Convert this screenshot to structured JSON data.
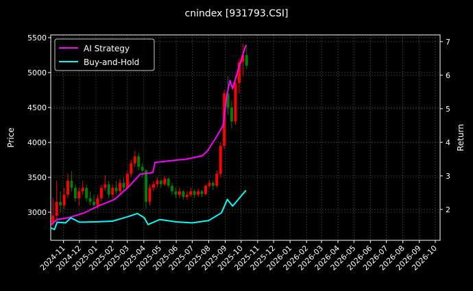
{
  "chart_data": {
    "type": "line",
    "title": "cnindex [931793.CSI]",
    "ylabel": "Price",
    "ylabel_right": "Return",
    "xlim": [
      "2024-10-08",
      "2026-10-10"
    ],
    "ylim": [
      2598,
      5539
    ],
    "ylim_right": [
      1.08,
      7.2
    ],
    "grid": true,
    "legend_placement": "top-left",
    "x_ticks": [
      "2024-11",
      "2024-12",
      "2025-01",
      "2025-02",
      "2025-03",
      "2025-04",
      "2025-05",
      "2025-06",
      "2025-07",
      "2025-08",
      "2025-09",
      "2025-10",
      "2025-11",
      "2025-12",
      "2026-01",
      "2026-02",
      "2026-03",
      "2026-04",
      "2026-05",
      "2026-06",
      "2026-07",
      "2026-08",
      "2026-09",
      "2026-10"
    ],
    "y_ticks": [
      3000,
      3500,
      4000,
      4500,
      5000,
      5500
    ],
    "y_ticks_right": [
      2,
      3,
      4,
      5,
      6,
      7
    ],
    "colors": {
      "up": "#ff0000",
      "down": "#008000",
      "ai": "#ff00ff",
      "bh": "#00ffff",
      "grid": "#555555"
    },
    "candles": [
      [
        "2024-10-09",
        2850,
        3200,
        2800,
        2950
      ],
      [
        "2024-10-16",
        2950,
        3450,
        2900,
        3150
      ],
      [
        "2024-10-23",
        3150,
        3300,
        3000,
        3100
      ],
      [
        "2024-10-30",
        3100,
        3350,
        3050,
        3250
      ],
      [
        "2024-11-06",
        3250,
        3550,
        3200,
        3450
      ],
      [
        "2024-11-13",
        3450,
        3590,
        3300,
        3350
      ],
      [
        "2024-11-20",
        3350,
        3400,
        3150,
        3200
      ],
      [
        "2024-11-27",
        3200,
        3350,
        3100,
        3300
      ],
      [
        "2024-12-04",
        3300,
        3450,
        3250,
        3350
      ],
      [
        "2024-12-11",
        3350,
        3400,
        3150,
        3200
      ],
      [
        "2024-12-18",
        3200,
        3300,
        3100,
        3150
      ],
      [
        "2024-12-25",
        3150,
        3250,
        3050,
        3100
      ],
      [
        "2025-01-01",
        3100,
        3250,
        3050,
        3200
      ],
      [
        "2025-01-08",
        3200,
        3400,
        3150,
        3350
      ],
      [
        "2025-01-15",
        3350,
        3530,
        3300,
        3400
      ],
      [
        "2025-01-22",
        3400,
        3450,
        3200,
        3250
      ],
      [
        "2025-01-29",
        3250,
        3400,
        3200,
        3350
      ],
      [
        "2025-02-05",
        3350,
        3450,
        3250,
        3300
      ],
      [
        "2025-02-12",
        3300,
        3480,
        3250,
        3420
      ],
      [
        "2025-02-19",
        3420,
        3500,
        3300,
        3350
      ],
      [
        "2025-02-26",
        3350,
        3600,
        3320,
        3550
      ],
      [
        "2025-03-05",
        3550,
        3750,
        3500,
        3700
      ],
      [
        "2025-03-12",
        3700,
        3880,
        3650,
        3800
      ],
      [
        "2025-03-19",
        3800,
        3850,
        3600,
        3650
      ],
      [
        "2025-03-26",
        3650,
        3700,
        3500,
        3600
      ],
      [
        "2025-04-02",
        3600,
        3620,
        3050,
        3150
      ],
      [
        "2025-04-09",
        3150,
        3400,
        3100,
        3350
      ],
      [
        "2025-04-16",
        3350,
        3450,
        3300,
        3400
      ],
      [
        "2025-04-23",
        3400,
        3500,
        3350,
        3450
      ],
      [
        "2025-04-30",
        3450,
        3480,
        3350,
        3400
      ],
      [
        "2025-05-07",
        3400,
        3520,
        3380,
        3480
      ],
      [
        "2025-05-14",
        3480,
        3500,
        3350,
        3380
      ],
      [
        "2025-05-21",
        3380,
        3420,
        3250,
        3300
      ],
      [
        "2025-05-28",
        3300,
        3350,
        3200,
        3250
      ],
      [
        "2025-06-04",
        3250,
        3350,
        3200,
        3300
      ],
      [
        "2025-06-11",
        3300,
        3320,
        3180,
        3220
      ],
      [
        "2025-06-18",
        3220,
        3300,
        3180,
        3250
      ],
      [
        "2025-06-25",
        3250,
        3350,
        3220,
        3300
      ],
      [
        "2025-07-02",
        3300,
        3330,
        3200,
        3250
      ],
      [
        "2025-07-09",
        3250,
        3340,
        3220,
        3300
      ],
      [
        "2025-07-16",
        3300,
        3320,
        3220,
        3260
      ],
      [
        "2025-07-23",
        3260,
        3400,
        3240,
        3380
      ],
      [
        "2025-07-30",
        3380,
        3460,
        3350,
        3420
      ],
      [
        "2025-08-06",
        3420,
        3450,
        3320,
        3380
      ],
      [
        "2025-08-13",
        3380,
        3600,
        3350,
        3550
      ],
      [
        "2025-08-20",
        3550,
        4000,
        3500,
        3950
      ],
      [
        "2025-08-27",
        3950,
        4750,
        3900,
        4700
      ],
      [
        "2025-09-03",
        4700,
        4950,
        4400,
        4500
      ],
      [
        "2025-09-10",
        4500,
        4600,
        4200,
        4300
      ],
      [
        "2025-09-17",
        4300,
        4950,
        4250,
        4850
      ],
      [
        "2025-09-24",
        4850,
        5200,
        4700,
        5150
      ],
      [
        "2025-10-01",
        5150,
        5420,
        4950,
        5250
      ],
      [
        "2025-10-08",
        5250,
        5400,
        5050,
        5100
      ]
    ],
    "series": [
      {
        "name": "AI Strategy",
        "axis": "right",
        "x": [
          "2024-10-09",
          "2024-10-20",
          "2024-11-10",
          "2024-11-20",
          "2024-12-10",
          "2025-01-05",
          "2025-02-05",
          "2025-03-05",
          "2025-03-25",
          "2025-04-18",
          "2025-04-22",
          "2025-05-20",
          "2025-06-20",
          "2025-07-20",
          "2025-07-30",
          "2025-08-15",
          "2025-08-28",
          "2025-09-04",
          "2025-09-10",
          "2025-09-15",
          "2025-09-26",
          "2025-10-10"
        ],
        "values": [
          1.55,
          1.7,
          1.75,
          1.8,
          1.9,
          2.1,
          2.3,
          2.7,
          3.05,
          3.1,
          3.4,
          3.45,
          3.5,
          3.6,
          3.75,
          4.15,
          4.5,
          5.4,
          5.85,
          5.6,
          6.2,
          6.9
        ]
      },
      {
        "name": "Buy-and-Hold",
        "axis": "right",
        "x": [
          "2024-10-09",
          "2024-10-15",
          "2024-10-20",
          "2024-11-05",
          "2024-11-15",
          "2024-12-01",
          "2025-01-01",
          "2025-02-01",
          "2025-03-01",
          "2025-03-20",
          "2025-04-02",
          "2025-04-09",
          "2025-05-01",
          "2025-06-01",
          "2025-07-01",
          "2025-08-01",
          "2025-08-25",
          "2025-09-05",
          "2025-09-15",
          "2025-10-10"
        ],
        "values": [
          1.45,
          1.4,
          1.62,
          1.6,
          1.75,
          1.62,
          1.63,
          1.65,
          1.78,
          1.88,
          1.75,
          1.55,
          1.7,
          1.63,
          1.6,
          1.67,
          1.9,
          2.3,
          2.1,
          2.57
        ]
      }
    ]
  }
}
